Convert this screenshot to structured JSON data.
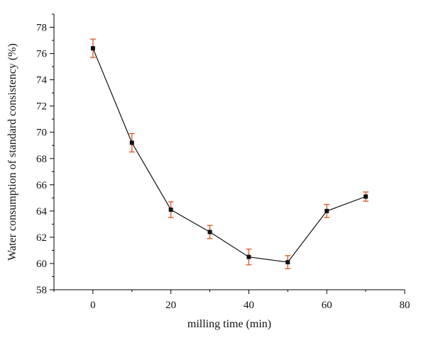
{
  "chart_data": {
    "type": "line",
    "xlabel": "milling time (min)",
    "ylabel": "Water consumption of standard consistency (%)",
    "xlim": [
      -10,
      80
    ],
    "ylim": [
      58,
      79
    ],
    "xticks": [
      0,
      20,
      40,
      60,
      80
    ],
    "yticks": [
      58,
      60,
      62,
      64,
      66,
      68,
      70,
      72,
      74,
      76,
      78
    ],
    "grid": false,
    "legend": "none",
    "series": [
      {
        "x": [
          0,
          10,
          20,
          30,
          40,
          50,
          60,
          70
        ],
        "y": [
          76.4,
          69.2,
          64.1,
          62.4,
          60.5,
          60.1,
          64.0,
          65.1
        ],
        "error": [
          0.7,
          0.7,
          0.6,
          0.5,
          0.6,
          0.5,
          0.5,
          0.35
        ],
        "marker_color": "#111111",
        "line_color": "#111111",
        "error_color": "#d9541e"
      }
    ]
  }
}
